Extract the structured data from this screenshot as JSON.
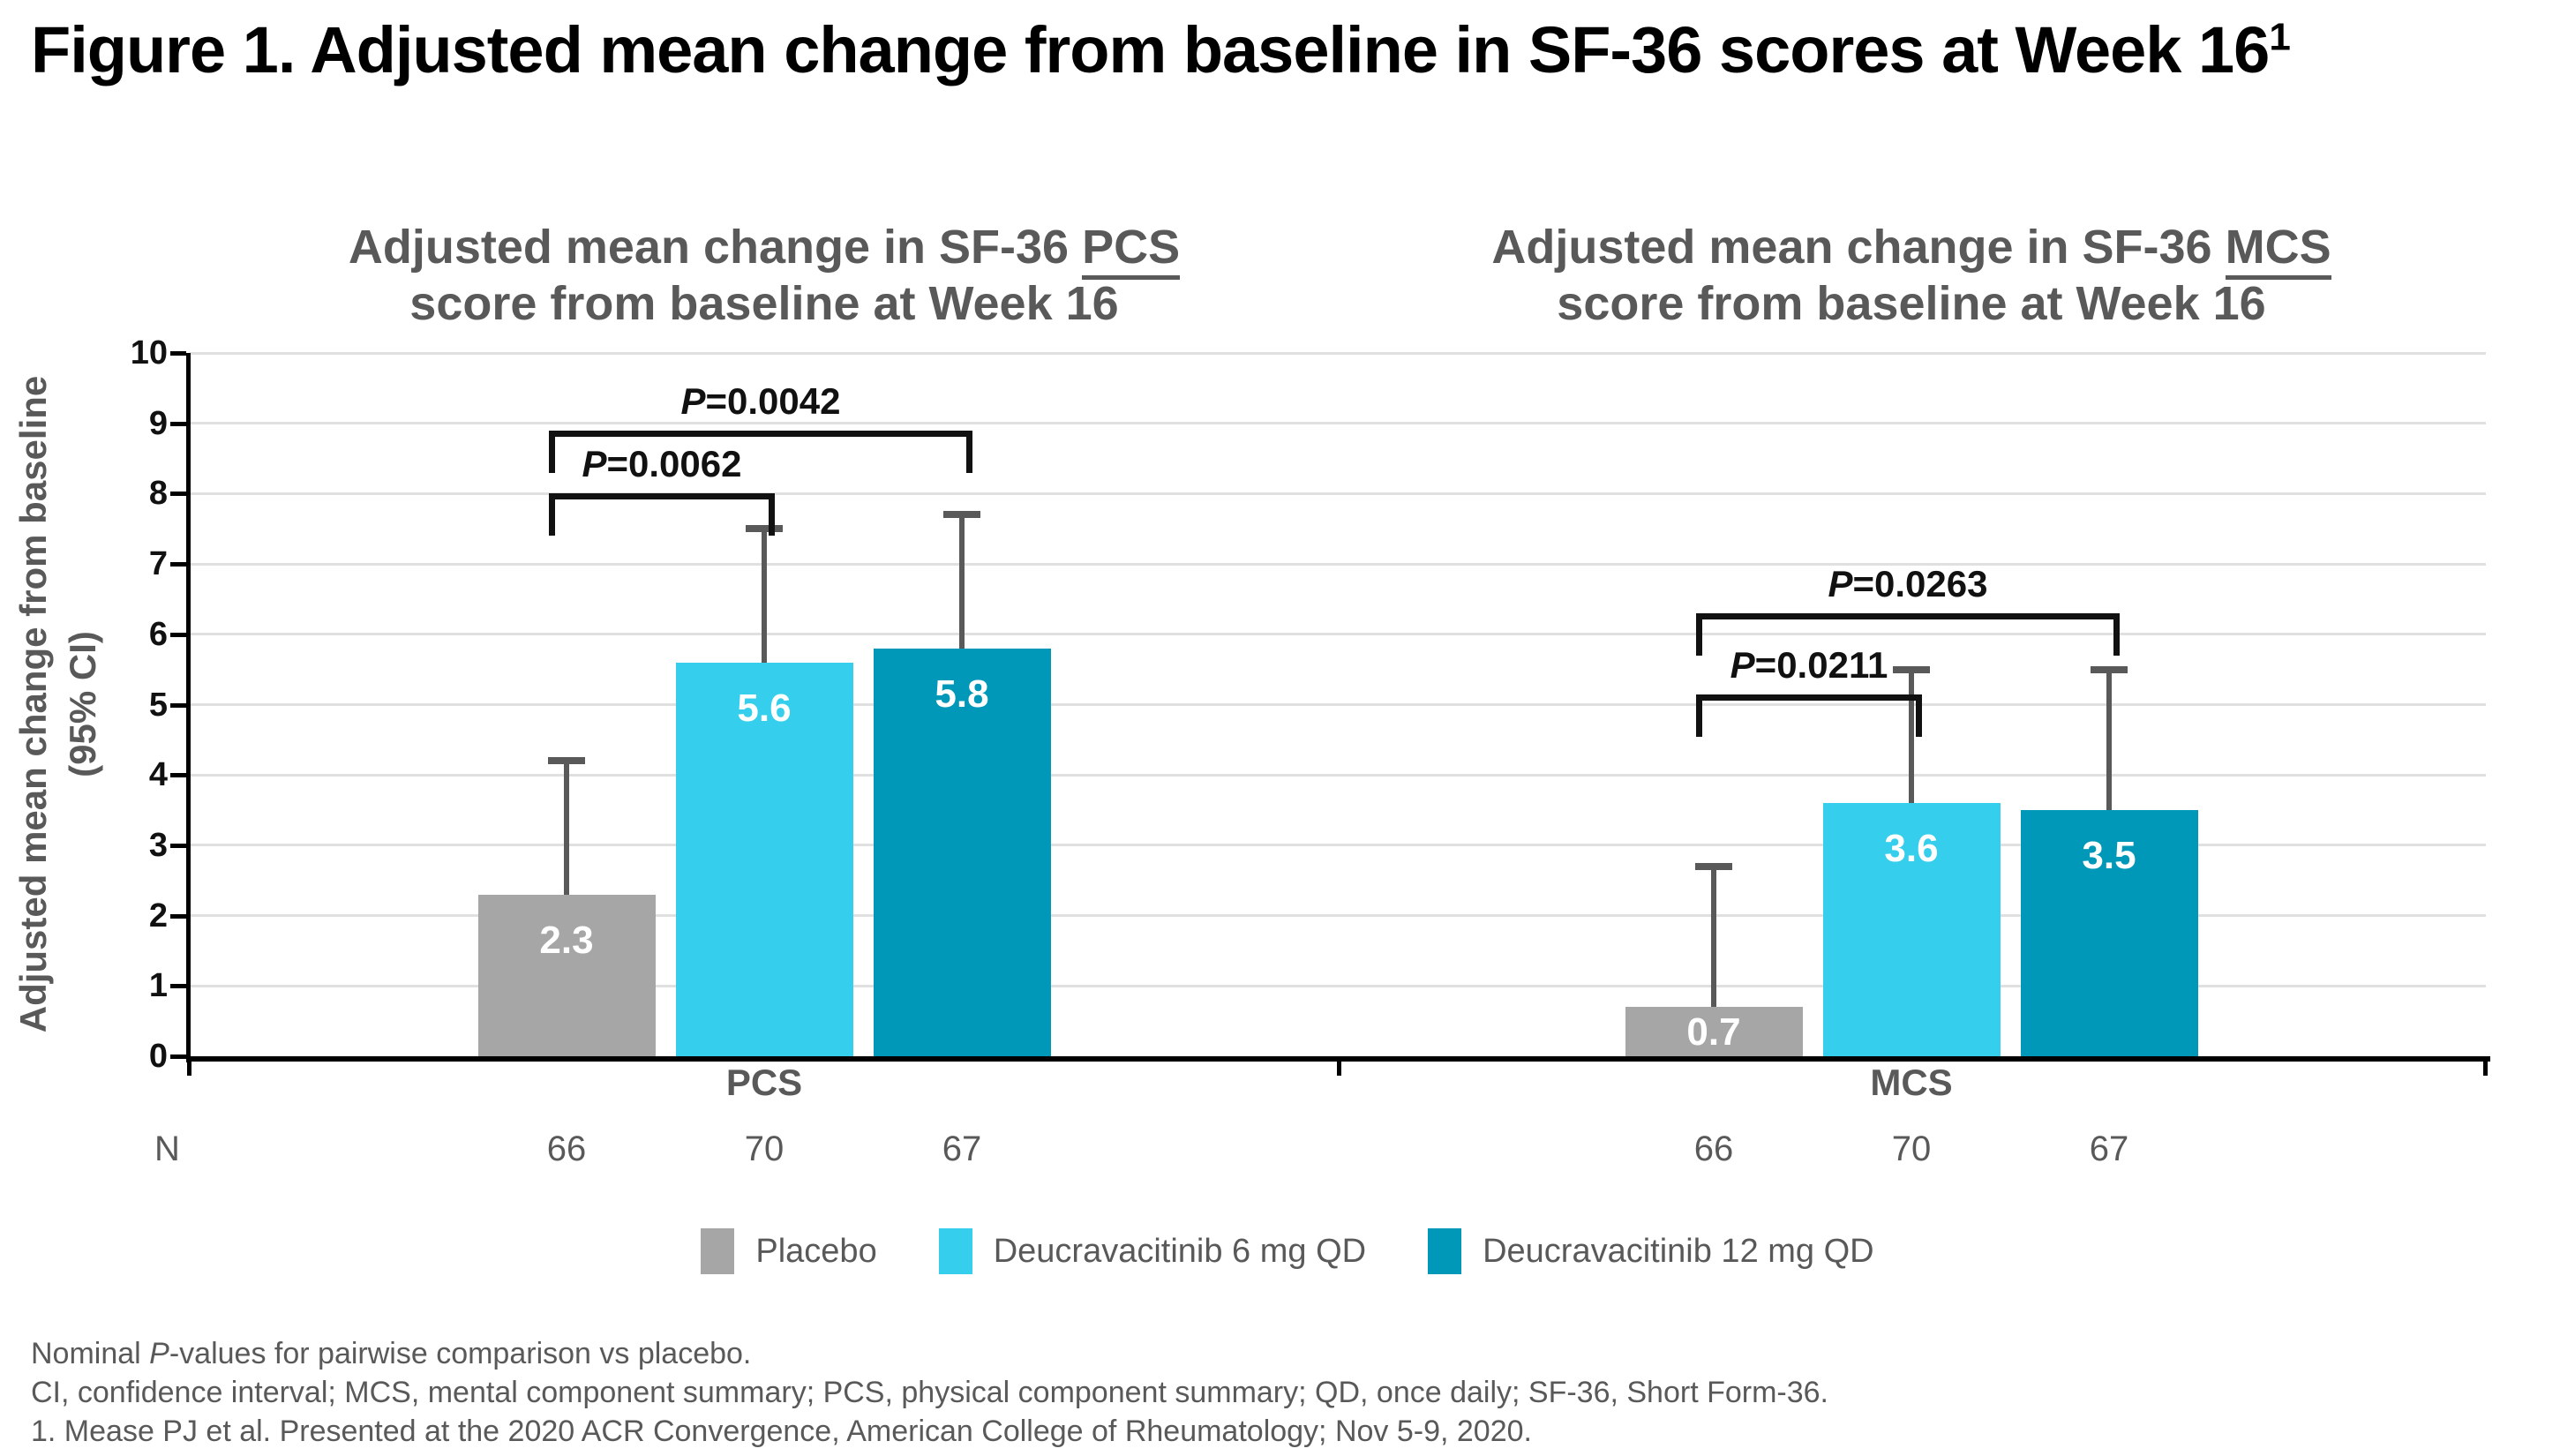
{
  "figure": {
    "title": "Figure 1. Adjusted mean change from baseline in SF-36 scores at Week 16",
    "title_superscript": "1"
  },
  "chart_data": {
    "type": "bar",
    "ylabel_line1": "Adjusted mean change from baseline",
    "ylabel_line2": "(95% CI)",
    "ylim": [
      0,
      10
    ],
    "ytick_step": 1,
    "grid": true,
    "categories": [
      "PCS",
      "MCS"
    ],
    "panel_titles": [
      {
        "prefix": "Adjusted mean change in SF-36 ",
        "emph": "PCS",
        "line2": "score from baseline at Week 16"
      },
      {
        "prefix": "Adjusted mean change in SF-36 ",
        "emph": "MCS",
        "line2": "score from baseline at Week 16"
      }
    ],
    "series": [
      {
        "name": "Placebo",
        "color": "#A6A6A6",
        "values": [
          2.3,
          0.7
        ],
        "ci_upper": [
          4.2,
          2.7
        ],
        "n": [
          66,
          66
        ]
      },
      {
        "name": "Deucravacitinib 6 mg QD",
        "color": "#35CFED",
        "values": [
          5.6,
          3.6
        ],
        "ci_upper": [
          7.5,
          5.5
        ],
        "n": [
          70,
          70
        ]
      },
      {
        "name": "Deucravacitinib 12 mg QD",
        "color": "#0098B8",
        "values": [
          5.8,
          3.5
        ],
        "ci_upper": [
          7.7,
          5.5
        ],
        "n": [
          67,
          67
        ]
      }
    ],
    "pvalues": [
      {
        "category_index": 0,
        "from_series": 0,
        "to_series": 1,
        "label": "P=0.0062",
        "height": 8.0
      },
      {
        "category_index": 0,
        "from_series": 0,
        "to_series": 2,
        "label": "P=0.0042",
        "height": 8.9
      },
      {
        "category_index": 1,
        "from_series": 0,
        "to_series": 1,
        "label": "P=0.0211",
        "height": 5.15
      },
      {
        "category_index": 1,
        "from_series": 0,
        "to_series": 2,
        "label": "P=0.0263",
        "height": 6.3
      }
    ],
    "error_bar_color": "#595959",
    "axis_color": "#000000",
    "grid_color": "#E0E0E0"
  },
  "n_row": {
    "label": "N"
  },
  "footnotes": [
    {
      "pre": "Nominal ",
      "italic": "P",
      "post": "-values for pairwise comparison vs placebo."
    },
    {
      "pre": "",
      "italic": "",
      "post": "CI, confidence interval; MCS, mental component summary; PCS, physical component summary; QD, once daily; SF-36, Short Form-36."
    },
    {
      "pre": "",
      "italic": "",
      "post": "1. Mease PJ et al. Presented at the 2020 ACR Convergence, American College of Rheumatology; Nov 5-9, 2020."
    }
  ]
}
